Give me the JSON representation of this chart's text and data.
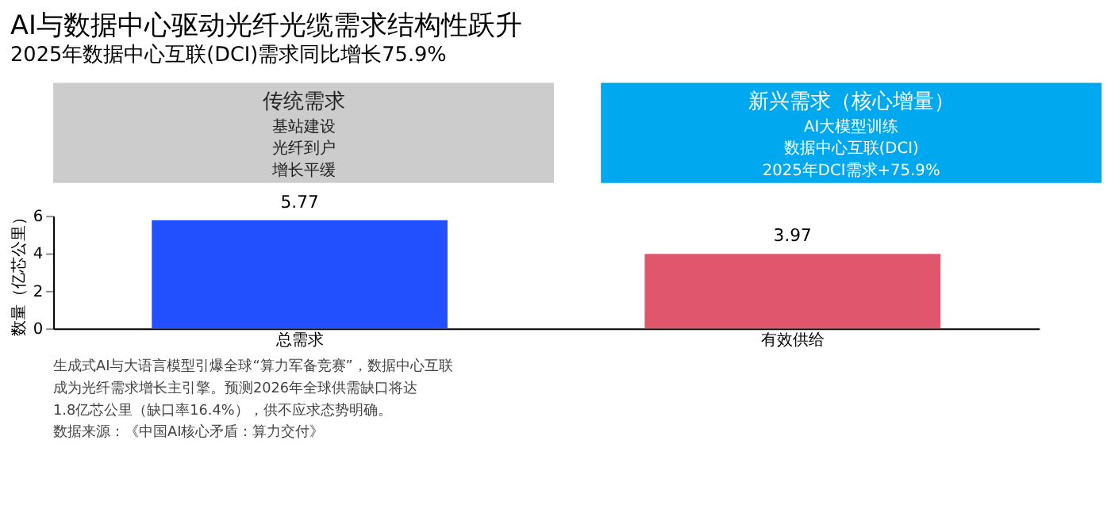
{
  "chart_data": [
    {
      "type": "other",
      "title": "AI与数据中心驱动光纤光缆需求结构性跃升",
      "subtitle": "2025年数据中心互联(DCI)需求同比增长75.9%"
    },
    {
      "type": "other",
      "title": "传统需求",
      "annotations": [
        "基站建设",
        "光纤到户",
        "增长平缓"
      ]
    },
    {
      "type": "other",
      "title": "新兴需求（核心增量）",
      "annotations": [
        "AI大模型训练",
        "数据中心互联(DCI)",
        "2025年DCI需求+75.9%"
      ]
    },
    {
      "type": "bar",
      "ylabel": "数量（亿芯公里）",
      "categories": [
        "总需求",
        "有效供给"
      ],
      "values": [
        5.77,
        3.97
      ],
      "colors": [
        "#2250ff",
        "#e0566c"
      ],
      "ylim": [
        0,
        6
      ],
      "yticks": [
        0,
        2,
        4,
        6
      ],
      "data_labels": true,
      "grid": false,
      "annotations": [
        "生成式AI与大语言模型引爆全球“算力军备竞赛”，数据中心互联",
        "成为光纤需求增长主引擎。预测2026年全球供需缺口将达",
        "1.8亿芯公里（缺口率16.4%），供不应求态势明确。",
        "数据来源：《中国AI核心矛盾：算力交付》"
      ]
    }
  ]
}
